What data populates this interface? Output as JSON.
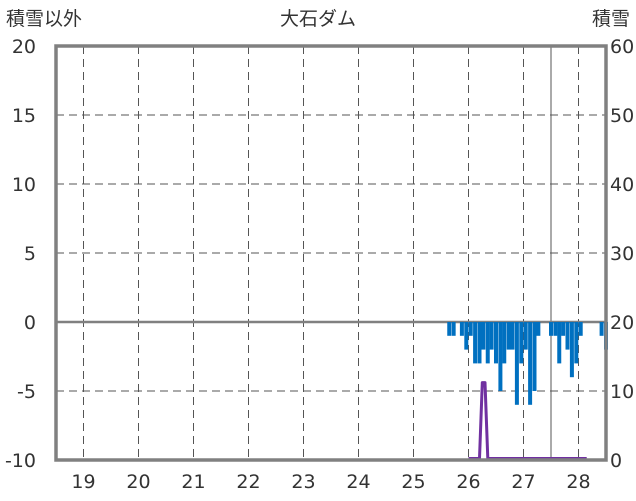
{
  "chart_data": {
    "type": "bar",
    "title": "大石ダム",
    "left_axis_label": "積雪以外",
    "right_axis_label": "積雪",
    "left_ylim": [
      -10,
      20
    ],
    "left_ticks": [
      20,
      15,
      10,
      5,
      0,
      -5,
      -10
    ],
    "right_ylim": [
      0,
      60
    ],
    "right_ticks": [
      60,
      50,
      40,
      30,
      20,
      10,
      0
    ],
    "x_range": [
      18.5,
      28.5
    ],
    "x_ticks": [
      19,
      20,
      21,
      22,
      23,
      24,
      25,
      26,
      27,
      28
    ],
    "grid": true,
    "colors": {
      "bars": "#0070c0",
      "snow_line": "#7030a0",
      "frame": "#808080",
      "zero_line": "#808080",
      "grid": "#555555"
    },
    "series": [
      {
        "type": "bar",
        "axis": "left",
        "x": [
          25.65,
          25.73,
          25.88,
          25.96,
          26.04,
          26.12,
          26.2,
          26.27,
          26.35,
          26.42,
          26.5,
          26.58,
          26.65,
          26.73,
          26.8,
          26.88,
          26.96,
          27.04,
          27.12,
          27.2,
          27.27,
          27.5,
          27.58,
          27.65,
          27.72,
          27.8,
          27.88,
          27.96,
          28.04,
          28.42,
          28.5
        ],
        "values": [
          -1,
          -1,
          -1,
          -2,
          -1,
          -3,
          -3,
          -2,
          -3,
          -2,
          -3,
          -5,
          -3,
          -2,
          -2,
          -6,
          -3,
          -2,
          -6,
          -5,
          -1,
          -1,
          -1,
          -3,
          -1,
          -2,
          -4,
          -3,
          -1,
          -1,
          -2
        ]
      },
      {
        "type": "line",
        "axis": "right",
        "x": [
          26.0,
          26.2,
          26.25,
          26.3,
          26.35,
          26.45,
          27.15,
          27.5,
          28.15
        ],
        "values": [
          0,
          0,
          11,
          11,
          0,
          0,
          0,
          0,
          0
        ]
      }
    ]
  }
}
